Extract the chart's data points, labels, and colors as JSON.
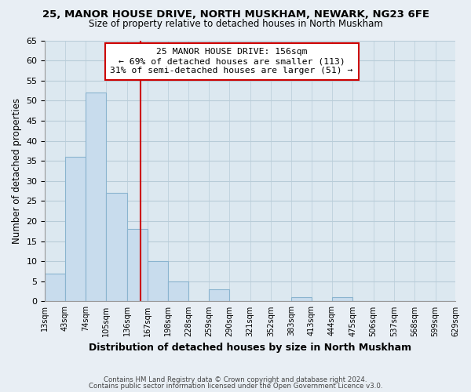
{
  "title": "25, MANOR HOUSE DRIVE, NORTH MUSKHAM, NEWARK, NG23 6FE",
  "subtitle": "Size of property relative to detached houses in North Muskham",
  "xlabel": "Distribution of detached houses by size in North Muskham",
  "ylabel": "Number of detached properties",
  "bar_edges": [
    13,
    43,
    74,
    105,
    136,
    167,
    198,
    228,
    259,
    290,
    321,
    352,
    383,
    413,
    444,
    475,
    506,
    537,
    568,
    599,
    629
  ],
  "bar_heights": [
    7,
    36,
    52,
    27,
    18,
    10,
    5,
    0,
    3,
    0,
    0,
    0,
    1,
    0,
    1,
    0,
    0,
    0,
    0,
    0
  ],
  "bar_color": "#c8dced",
  "bar_edgecolor": "#8ab4cf",
  "vline_x": 156,
  "vline_color": "#cc0000",
  "ylim": [
    0,
    65
  ],
  "yticks": [
    0,
    5,
    10,
    15,
    20,
    25,
    30,
    35,
    40,
    45,
    50,
    55,
    60,
    65
  ],
  "annotation_title": "25 MANOR HOUSE DRIVE: 156sqm",
  "annotation_line1": "← 69% of detached houses are smaller (113)",
  "annotation_line2": "31% of semi-detached houses are larger (51) →",
  "footer1": "Contains HM Land Registry data © Crown copyright and database right 2024.",
  "footer2": "Contains public sector information licensed under the Open Government Licence v3.0.",
  "background_color": "#e8eef4",
  "plot_bg_color": "#dce8f0",
  "grid_color": "#b8ccd8",
  "title_fontsize": 9.5,
  "subtitle_fontsize": 8.5
}
